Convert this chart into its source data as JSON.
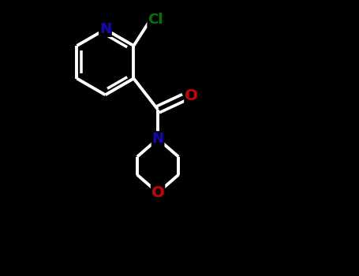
{
  "background_color": "#000000",
  "atom_colors": {
    "N": "#1a00cc",
    "O_carbonyl": "#cc0000",
    "O_ether": "#cc0000",
    "Cl": "#007700",
    "C": "#ffffff"
  },
  "bond_color": "#ffffff",
  "bond_width": 2.8,
  "figsize": [
    4.55,
    3.5
  ],
  "dpi": 100
}
